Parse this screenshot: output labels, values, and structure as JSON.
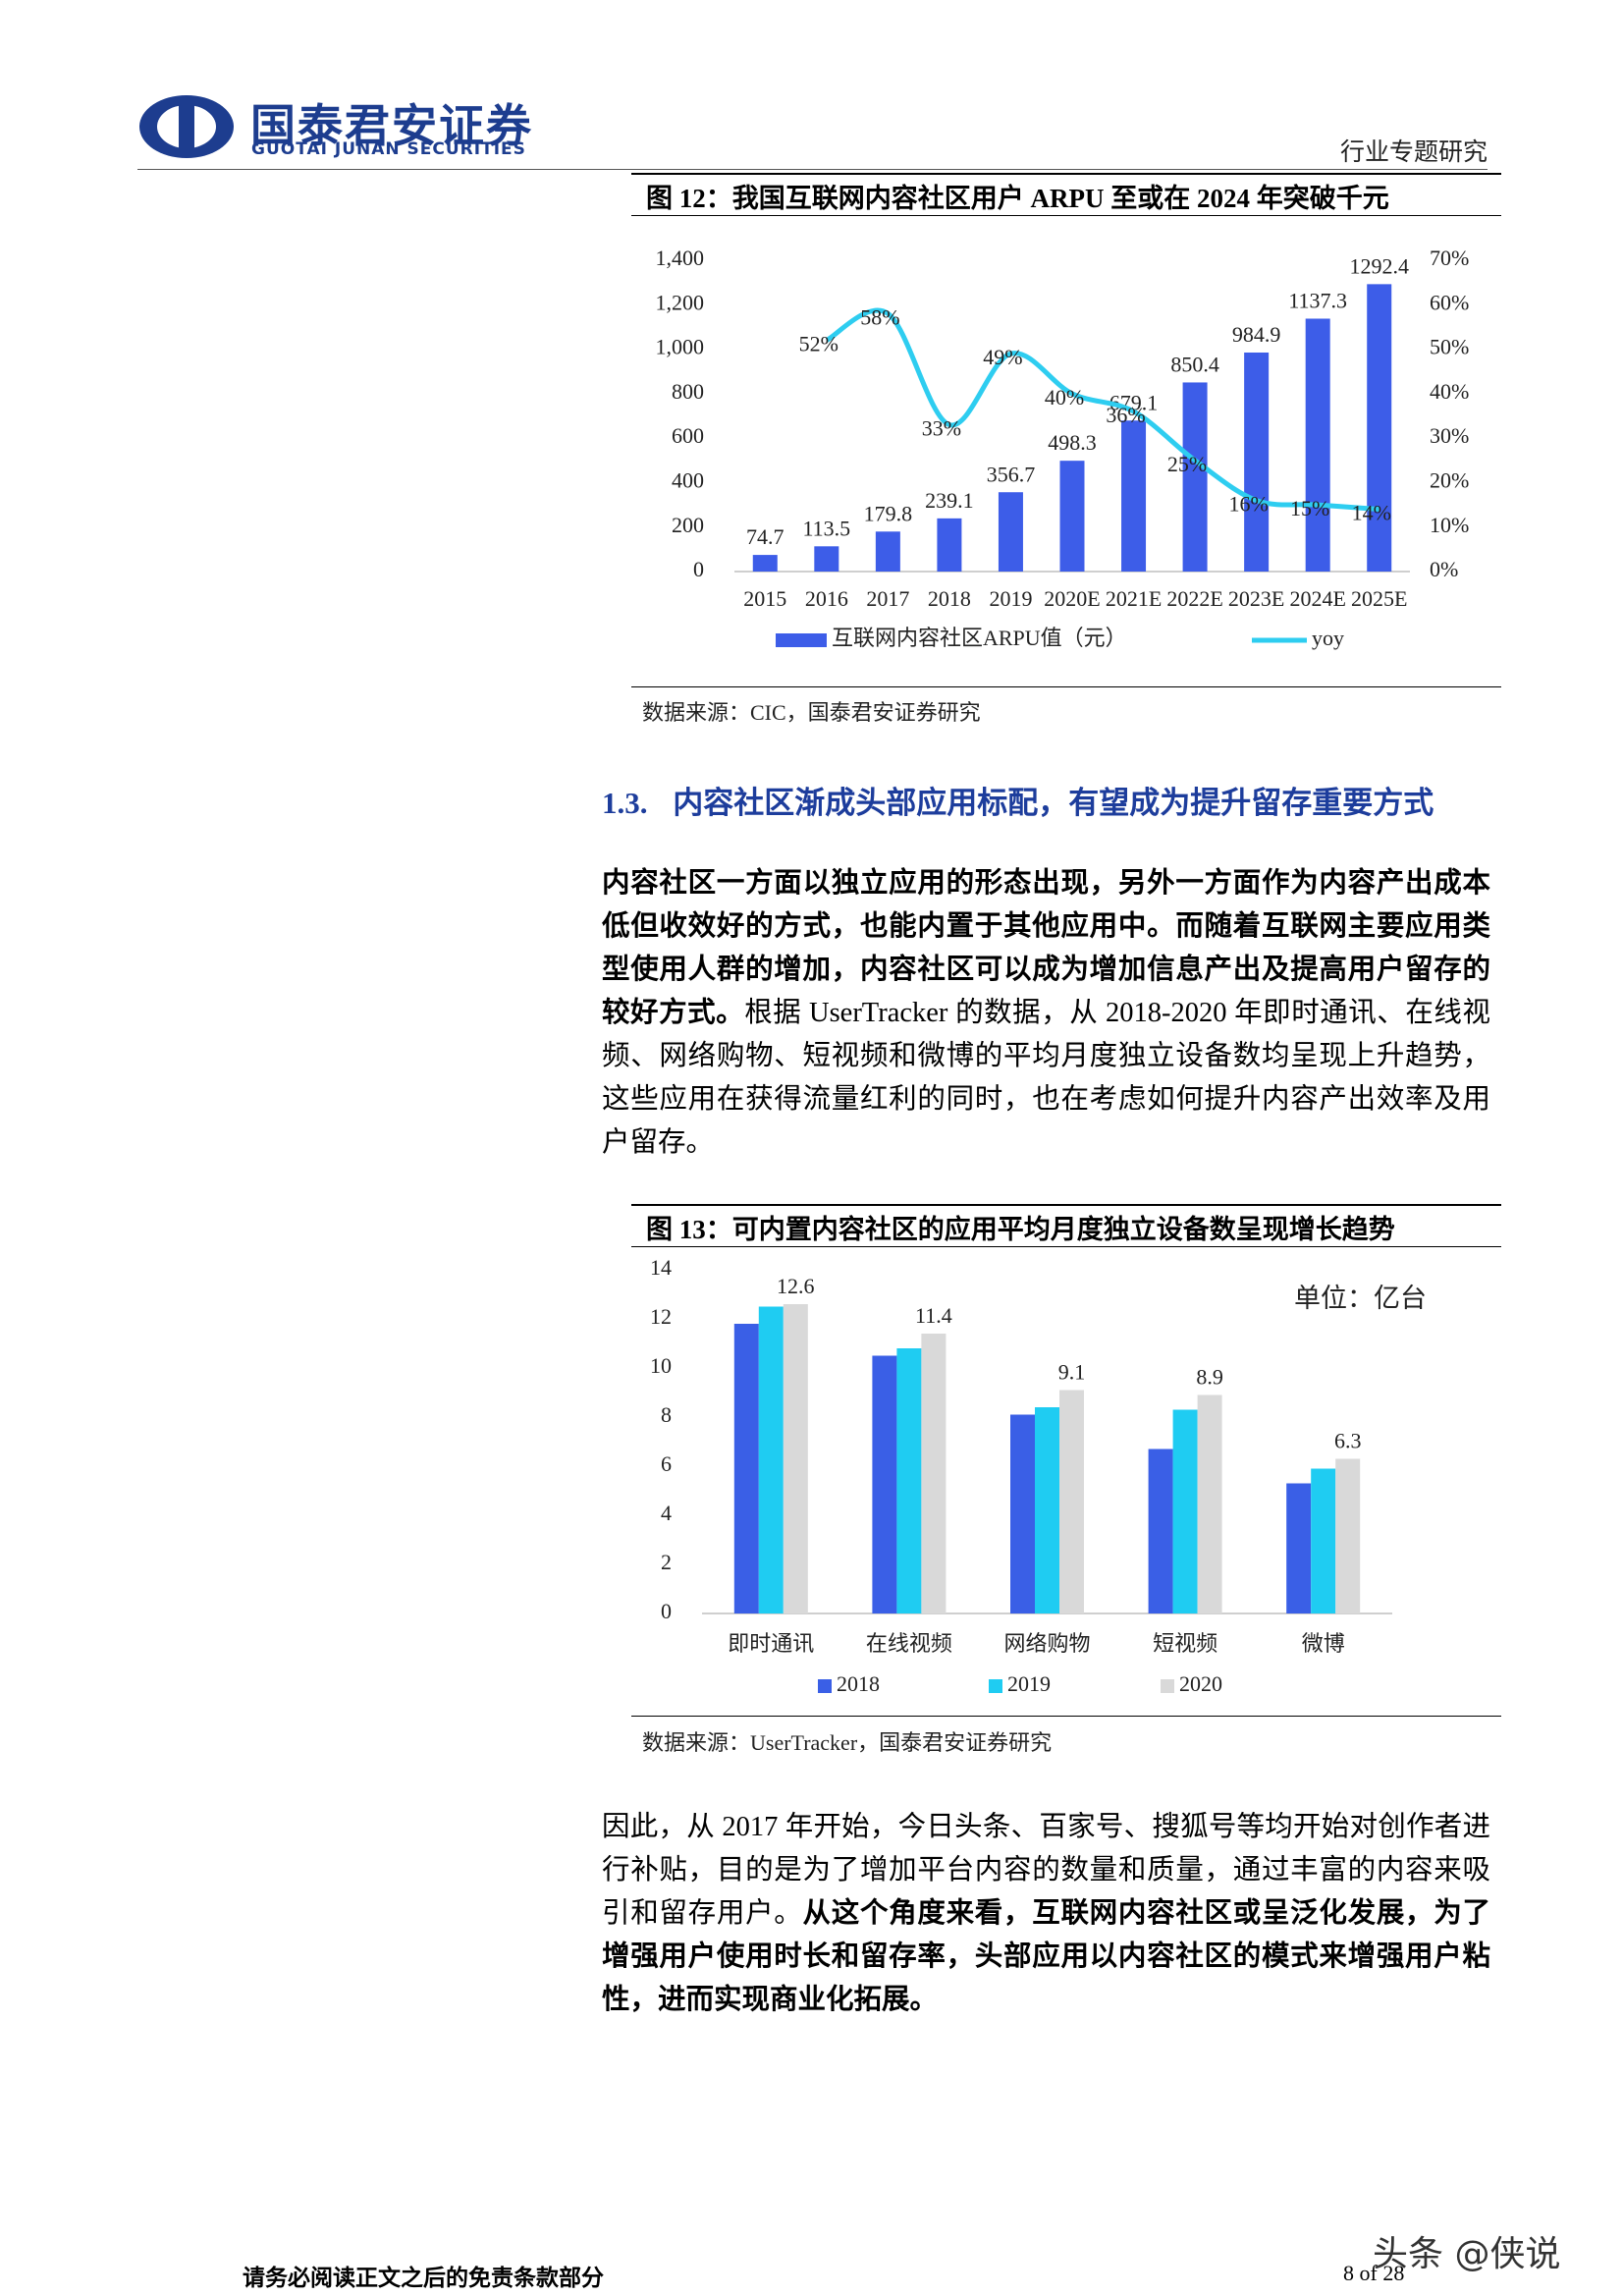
{
  "header": {
    "logo": "国泰君安证券",
    "logo_en": "GUOTAI JUNAN SECURITIES",
    "report_type": "行业专题研究"
  },
  "chart_data": [
    {
      "type": "bar",
      "title": "图 12：我国互联网内容社区用户 ARPU 至或在 2024 年突破千元",
      "categories": [
        "2015",
        "2016",
        "2017",
        "2018",
        "2019",
        "2020E",
        "2021E",
        "2022E",
        "2023E",
        "2024E",
        "2025E"
      ],
      "series": [
        {
          "name": "互联网内容社区ARPU值（元）",
          "type": "bar",
          "color": "#3d5de8",
          "values": [
            74.7,
            113.5,
            179.8,
            239.1,
            356.7,
            498.3,
            679.1,
            850.4,
            984.9,
            1137.3,
            1292.4
          ]
        },
        {
          "name": "yoy",
          "type": "line",
          "axis": "y2",
          "color": "#2ecdf0",
          "values": [
            null,
            52,
            58,
            33,
            49,
            40,
            36,
            25,
            16,
            15,
            14
          ],
          "value_labels": [
            null,
            "52%",
            "58%",
            "33%",
            "49%",
            "40%",
            "36%",
            "25%",
            "16%",
            "15%",
            "14%"
          ]
        }
      ],
      "ylim": [
        0,
        1400
      ],
      "yticks": [
        0,
        200,
        400,
        600,
        800,
        {
          "value": 1000,
          "label": "1,000"
        },
        {
          "value": 1200,
          "label": "1,200"
        },
        {
          "value": 1400,
          "label": "1,400"
        }
      ],
      "y2lim": [
        0,
        70
      ],
      "y2ticks": [
        {
          "value": 0,
          "label": "0%"
        },
        {
          "value": 10,
          "label": "10%"
        },
        {
          "value": 20,
          "label": "20%"
        },
        {
          "value": 30,
          "label": "30%"
        },
        {
          "value": 40,
          "label": "40%"
        },
        {
          "value": 50,
          "label": "50%"
        },
        {
          "value": 60,
          "label": "60%"
        },
        {
          "value": 70,
          "label": "70%"
        }
      ],
      "grid": false,
      "legend": "bottom",
      "source": "数据来源：CIC，国泰君安证券研究"
    },
    {
      "type": "bar",
      "title": "图 13：可内置内容社区的应用平均月度独立设备数呈现增长趋势",
      "annotation": "单位：亿台",
      "categories": [
        "即时通讯",
        "在线视频",
        "网络购物",
        "短视频",
        "微博"
      ],
      "series": [
        {
          "name": "2018",
          "color": "#3a5fe6",
          "values": [
            11.8,
            10.5,
            8.1,
            6.7,
            5.3
          ],
          "show_labels": false
        },
        {
          "name": "2019",
          "color": "#1fccf2",
          "values": [
            12.5,
            10.8,
            8.4,
            8.3,
            5.9
          ],
          "show_labels": false
        },
        {
          "name": "2020",
          "color": "#d9d9d9",
          "values": [
            12.6,
            11.4,
            9.1,
            8.9,
            6.3
          ],
          "show_labels": true
        }
      ],
      "ylim": [
        0,
        14
      ],
      "yticks": [
        0,
        2,
        4,
        6,
        8,
        10,
        12,
        14
      ],
      "grid": false,
      "legend": "bottom",
      "source": "数据来源：UserTracker，国泰君安证券研究"
    }
  ],
  "section": {
    "number": "1.3.",
    "title": "内容社区渐成头部应用标配，有望成为提升留存重要方式"
  },
  "paragraphs": [
    [
      {
        "text": "内容社区一方面以独立应用的形态出现，另外一方面作为内容产出成本低但收效好的方式，也能内置于其他应用中。而随着互联网主要应用类型使用人群的增加，内容社区可以成为增加信息产出及提高用户留存的较好方式。",
        "bold": true
      },
      {
        "text": "根据 UserTracker 的数据，从 2018-2020 年即时通讯、在线视频、网络购物、短视频和微博的平均月度独立设备数均呈现上升趋势，这些应用在获得流量红利的同时，也在考虑如何提升内容产出效率及用户留存。",
        "bold": false
      }
    ],
    [
      {
        "text": "因此，从 2017 年开始，今日头条、百家号、搜狐号等均开始对创作者进行补贴，目的是为了增加平台内容的数量和质量，通过丰富的内容来吸引和留存用户。",
        "bold": false
      },
      {
        "text": "从这个角度来看，互联网内容社区或呈泛化发展，为了增强用户使用时长和留存率，头部应用以内容社区的模式来增强用户粘性，进而实现商业化拓展。",
        "bold": true
      }
    ]
  ],
  "footer": {
    "disclaimer": "请务必阅读正文之后的免责条款部分",
    "page": "8 of 28",
    "watermark": "头条 @侠说"
  }
}
